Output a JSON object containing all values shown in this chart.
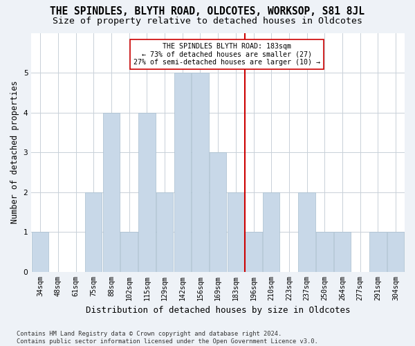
{
  "title": "THE SPINDLES, BLYTH ROAD, OLDCOTES, WORKSOP, S81 8JL",
  "subtitle": "Size of property relative to detached houses in Oldcotes",
  "xlabel": "Distribution of detached houses by size in Oldcotes",
  "ylabel": "Number of detached properties",
  "footer": "Contains HM Land Registry data © Crown copyright and database right 2024.\nContains public sector information licensed under the Open Government Licence v3.0.",
  "bins": [
    "34sqm",
    "48sqm",
    "61sqm",
    "75sqm",
    "88sqm",
    "102sqm",
    "115sqm",
    "129sqm",
    "142sqm",
    "156sqm",
    "169sqm",
    "183sqm",
    "196sqm",
    "210sqm",
    "223sqm",
    "237sqm",
    "250sqm",
    "264sqm",
    "277sqm",
    "291sqm",
    "304sqm"
  ],
  "values": [
    1,
    0,
    0,
    2,
    4,
    1,
    4,
    2,
    5,
    5,
    3,
    2,
    1,
    2,
    0,
    2,
    1,
    1,
    0,
    1,
    1
  ],
  "bar_color": "#c8d8e8",
  "bar_edge_color": "#a8bece",
  "highlight_index": 11,
  "vline_color": "#cc0000",
  "annotation_text": "THE SPINDLES BLYTH ROAD: 183sqm\n← 73% of detached houses are smaller (27)\n27% of semi-detached houses are larger (10) →",
  "annotation_box_color": "#ffffff",
  "annotation_box_edge_color": "#cc0000",
  "ylim": [
    0,
    6
  ],
  "yticks": [
    0,
    1,
    2,
    3,
    4,
    5,
    6
  ],
  "background_color": "#eef2f7",
  "plot_background_color": "#ffffff",
  "grid_color": "#c8d0d8",
  "title_fontsize": 10.5,
  "subtitle_fontsize": 9.5,
  "tick_fontsize": 7.2,
  "ylabel_fontsize": 8.5,
  "xlabel_fontsize": 9
}
